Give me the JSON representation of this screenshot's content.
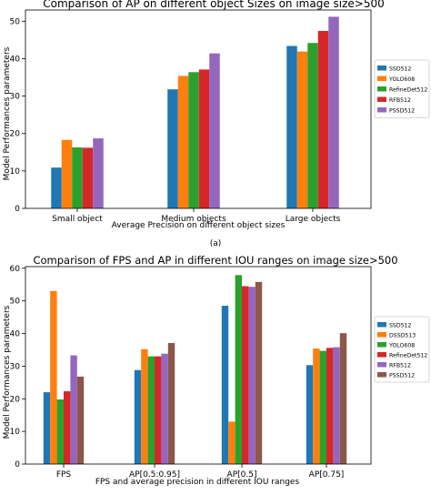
{
  "chart_data": [
    {
      "type": "bar",
      "title": "Comparison of AP on different object Sizes on image size>500",
      "xlabel": "Average Precision on different object sizes",
      "ylabel": "Model Performances parameters",
      "ylim": [
        0,
        53
      ],
      "yticks": [
        0,
        10,
        20,
        30,
        40,
        50
      ],
      "grid": false,
      "legend_placement": "right",
      "categories": [
        "Small object",
        "Medium objects",
        "Large objects"
      ],
      "series": [
        {
          "name": "SSD512",
          "color": "#1f77b4",
          "values": [
            10.9,
            31.8,
            43.4
          ]
        },
        {
          "name": "YOLO608",
          "color": "#ff7f0e",
          "values": [
            18.3,
            35.4,
            41.9
          ]
        },
        {
          "name": "RefineDet512",
          "color": "#2ca02c",
          "values": [
            16.3,
            36.4,
            44.2
          ]
        },
        {
          "name": "RFB512",
          "color": "#d62728",
          "values": [
            16.2,
            37.1,
            47.4
          ]
        },
        {
          "name": "PSSD512",
          "color": "#9467bd",
          "values": [
            18.7,
            41.4,
            51.2
          ]
        }
      ],
      "caption": "(a)"
    },
    {
      "type": "bar",
      "title": "Comparison of FPS and AP in different IOU ranges on image size>500",
      "xlabel": "FPS and average precision in different IOU ranges",
      "ylabel": "Model Performances parameters",
      "ylim": [
        0,
        60.5
      ],
      "yticks": [
        0,
        10,
        20,
        30,
        40,
        50,
        60
      ],
      "grid": false,
      "legend_placement": "right",
      "categories": [
        "FPS",
        "AP[0.5:0.95]",
        "AP[0.5]",
        "AP[0.75]"
      ],
      "series": [
        {
          "name": "SSD512",
          "color": "#1f77b4",
          "values": [
            22.0,
            28.8,
            48.5,
            30.3
          ]
        },
        {
          "name": "DSSD513",
          "color": "#ff7f0e",
          "values": [
            53.0,
            35.2,
            13.0,
            35.4
          ]
        },
        {
          "name": "YOLO608",
          "color": "#2ca02c",
          "values": [
            19.8,
            33.0,
            57.9,
            34.7
          ]
        },
        {
          "name": "RefineDet512",
          "color": "#d62728",
          "values": [
            22.3,
            33.0,
            54.5,
            35.6
          ]
        },
        {
          "name": "RFB512",
          "color": "#9467bd",
          "values": [
            33.3,
            33.8,
            54.3,
            35.8
          ]
        },
        {
          "name": "PSSD512",
          "color": "#8c564b",
          "values": [
            26.8,
            37.1,
            55.8,
            40.1
          ]
        }
      ]
    }
  ]
}
